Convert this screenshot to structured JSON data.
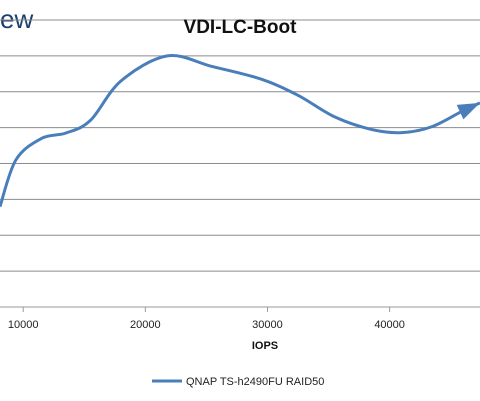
{
  "brand_fragment": "ew",
  "chart_data": {
    "type": "line",
    "title": "VDI-LC-Boot",
    "xlabel": "IOPS",
    "ylabel": "",
    "x_ticks": [
      10000,
      20000,
      30000,
      40000
    ],
    "x_tick_labels": [
      "10000",
      "20000",
      "30000",
      "40000"
    ],
    "xlim": [
      8100,
      47400
    ],
    "ylim": [
      0,
      8
    ],
    "grid": true,
    "legend_position": "bottom",
    "series": [
      {
        "name": "QNAP TS-h2490FU RAID50",
        "color": "#4a7ebb",
        "x": [
          8100,
          9400,
          11500,
          13500,
          15500,
          18000,
          21800,
          25500,
          29500,
          32500,
          35500,
          38500,
          41000,
          43500,
          46000,
          47400
        ],
        "y": [
          2.8,
          4.1,
          4.7,
          4.85,
          5.2,
          6.3,
          7.0,
          6.7,
          6.35,
          5.9,
          5.3,
          4.95,
          4.86,
          5.03,
          5.47,
          5.69
        ]
      }
    ]
  }
}
